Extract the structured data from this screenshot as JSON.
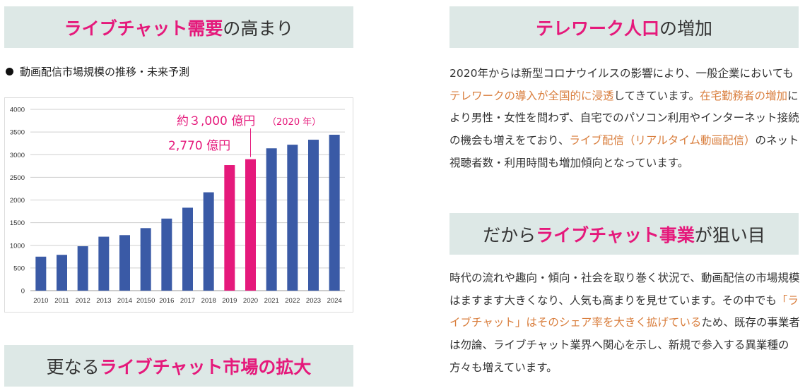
{
  "headings": {
    "demand": {
      "accent": "ライブチャット需要",
      "rest": "の高まり"
    },
    "market": {
      "prefix": "更なる",
      "accent": "ライブチャット市場の拡大"
    },
    "telework": {
      "accent": "テレワーク人口",
      "rest": "の増加"
    },
    "target": {
      "prefix": "だから",
      "accent": "ライブチャット事業",
      "rest": "が狙い目"
    }
  },
  "chart_caption": "動画配信市場規模の推移・未来予測",
  "chart_data": {
    "type": "bar",
    "categories": [
      "2010",
      "2011",
      "2012",
      "2013",
      "2014",
      "20150",
      "2016",
      "2017",
      "2018",
      "2019",
      "2020",
      "2021",
      "2022",
      "2023",
      "2024"
    ],
    "values": [
      750,
      790,
      980,
      1190,
      1225,
      1380,
      1590,
      1830,
      2170,
      2770,
      2900,
      3140,
      3220,
      3330,
      3440
    ],
    "highlight": [
      false,
      false,
      false,
      false,
      false,
      false,
      false,
      false,
      false,
      true,
      true,
      false,
      false,
      false,
      false
    ],
    "ylim": [
      0,
      4000
    ],
    "yticks": [
      0,
      500,
      1000,
      1500,
      2000,
      2500,
      3000,
      3500,
      4000
    ],
    "grid": true,
    "colors": {
      "bar": "#3a5aa6",
      "highlight": "#e5197b",
      "grid": "#cfcfcf"
    },
    "annotations": {
      "a2020_main": "約３,000 億円",
      "a2020_sub": "（2020 年）",
      "a2019": "2,770 億円"
    }
  },
  "telework_paragraph": [
    {
      "t": "2020年からは新型コロナウイルスの影響により、一般企業にお"
    },
    {
      "t": "いても"
    },
    {
      "t": "テレワークの導入が全国的に浸透",
      "hl": true
    },
    {
      "t": "してきています。"
    },
    {
      "t": "在宅勤務者の増加",
      "hl": true
    },
    {
      "t": "により男性・女性を問わず、自宅でのパソコン利用やインターネット接続の機会も増えをており、"
    },
    {
      "t": "ライブ配信（リアルタイム動画配信）",
      "hl": true
    },
    {
      "t": "のネット視聴者数・利用時間も増加傾向となっています。"
    }
  ],
  "target_paragraph": [
    {
      "t": "時代の流れや趣向・傾向・社会を取り巻く状況で、動画配信の市場規模はますます大きくなり、人気も高まりを見せています。その中でも"
    },
    {
      "t": "「ライブチャット」はそのシェア率を大きく拡げている",
      "hl": true
    },
    {
      "t": "ため、既存の事業者は勿論、ライブチャット業界へ関心を示し、新規で参入する異業種の方々も増えています。"
    }
  ]
}
